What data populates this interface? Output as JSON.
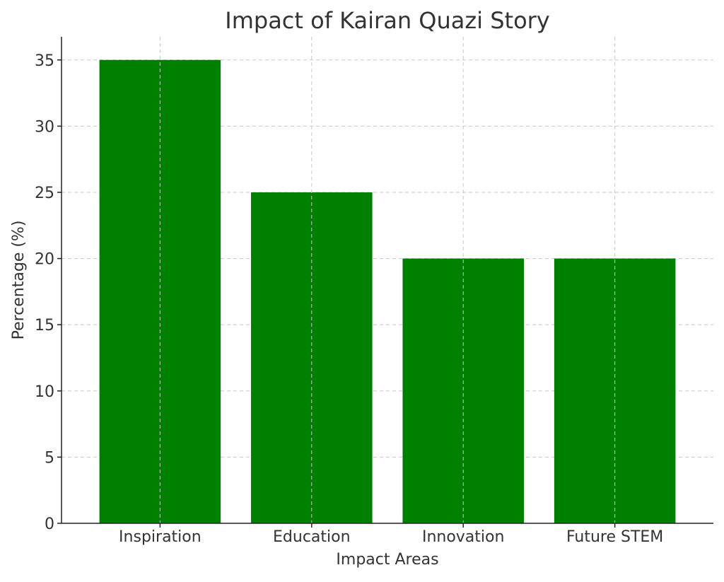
{
  "chart_data": {
    "type": "bar",
    "title": "Impact of Kairan Quazi Story",
    "xlabel": "Impact Areas",
    "ylabel": "Percentage (%)",
    "categories": [
      "Inspiration",
      "Education",
      "Innovation",
      "Future STEM"
    ],
    "values": [
      35,
      25,
      20,
      20
    ],
    "ylim": [
      0,
      36.75
    ],
    "yticks": [
      0,
      5,
      10,
      15,
      20,
      25,
      30,
      35
    ],
    "grid": true,
    "bar_color": "#008000"
  }
}
